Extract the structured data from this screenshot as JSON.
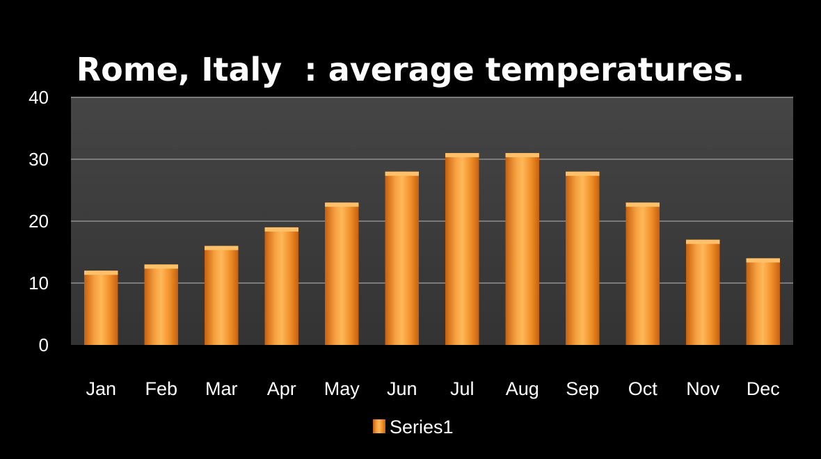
{
  "chart_data": {
    "type": "bar",
    "title": "Rome, Italy  : average temperatures.",
    "xlabel": "",
    "ylabel": "",
    "categories": [
      "Jan",
      "Feb",
      "Mar",
      "Apr",
      "May",
      "Jun",
      "Jul",
      "Aug",
      "Sep",
      "Oct",
      "Nov",
      "Dec"
    ],
    "series": [
      {
        "name": "Series1",
        "values": [
          12,
          13,
          16,
          19,
          23,
          28,
          31,
          31,
          28,
          23,
          17,
          14
        ]
      }
    ],
    "ylim": [
      0,
      40
    ],
    "yticks": [
      "0",
      "10",
      "20",
      "30",
      "40"
    ],
    "grid": true,
    "legend_position": "bottom",
    "colors": {
      "background": "#000000",
      "plot_area": "#3b3b3b",
      "gridline": "#7a7a7a",
      "bar": "#f0902a",
      "bar_light": "#ffc06a",
      "bar_dark": "#c8600e",
      "text": "#ffffff"
    }
  }
}
